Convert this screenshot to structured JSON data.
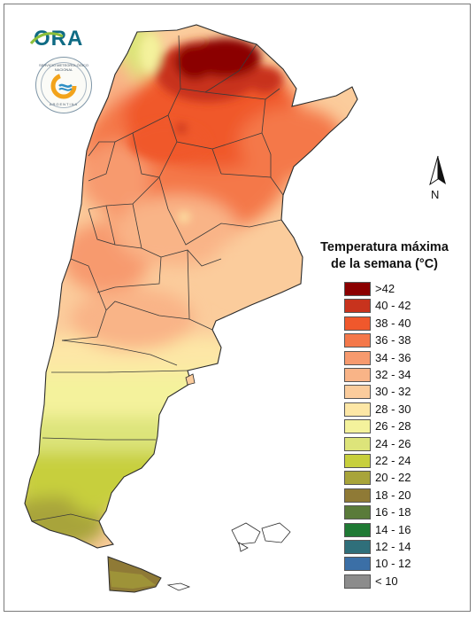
{
  "branding": {
    "logo_text": "ORA",
    "seal_top_text": "SERVICIO METEOROLÓGICO NACIONAL",
    "seal_bottom_text": "ARGENTINA"
  },
  "north_arrow": {
    "label": "N"
  },
  "legend": {
    "title_line1": "Temperatura máxima",
    "title_line2": "de la semana (°C)",
    "items": [
      {
        "label": ">42",
        "color": "#8b0000"
      },
      {
        "label": "40 - 42",
        "color": "#c8331d"
      },
      {
        "label": "38 - 40",
        "color": "#f0582c"
      },
      {
        "label": "36 - 38",
        "color": "#f4784a"
      },
      {
        "label": "34 - 36",
        "color": "#f79a6e"
      },
      {
        "label": "32 - 34",
        "color": "#f9b487"
      },
      {
        "label": "30 - 32",
        "color": "#fbcc9c"
      },
      {
        "label": "28 - 30",
        "color": "#fde7a6"
      },
      {
        "label": "26 - 28",
        "color": "#f4f29c"
      },
      {
        "label": "24 - 26",
        "color": "#dde47a"
      },
      {
        "label": "22 - 24",
        "color": "#c7cf3c"
      },
      {
        "label": "20 - 22",
        "color": "#a8a43a"
      },
      {
        "label": "18 - 20",
        "color": "#8f7a36"
      },
      {
        "label": "16 - 18",
        "color": "#5a7b3a"
      },
      {
        "label": "14 - 16",
        "color": "#1f7a34"
      },
      {
        "label": "12 - 14",
        "color": "#2f6f7a"
      },
      {
        "label": "10 - 12",
        "color": "#3b6fa6"
      },
      {
        "label": "< 10",
        "color": "#8c8c8c"
      }
    ]
  }
}
